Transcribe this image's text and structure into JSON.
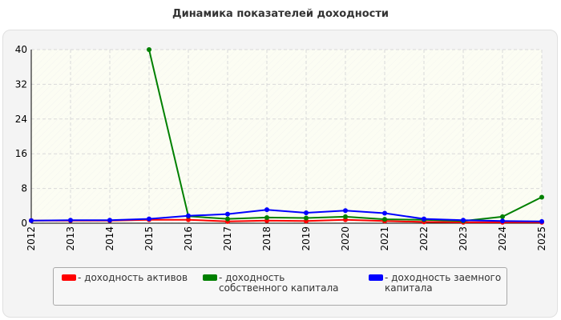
{
  "chart_data": {
    "type": "line",
    "title": "Динамика показателей доходности",
    "x": [
      "2012",
      "2013",
      "2014",
      "2015",
      "2016",
      "2017",
      "2018",
      "2019",
      "2020",
      "2021",
      "2022",
      "2023",
      "2024",
      "2025"
    ],
    "ylim": [
      0,
      40
    ],
    "yticks": [
      "0",
      "8",
      "16",
      "24",
      "32",
      "40"
    ],
    "grid": true,
    "legend_position": "bottom",
    "series": [
      {
        "name": "- доходность активов",
        "color": "#ff0000",
        "values": [
          0.6,
          0.6,
          0.6,
          0.8,
          0.8,
          0.4,
          0.6,
          0.5,
          0.8,
          0.5,
          0.3,
          0.2,
          0.2,
          0.2
        ]
      },
      {
        "name": "- доходность собственного капитала",
        "color": "#008000",
        "values": [
          null,
          null,
          null,
          40,
          1.6,
          1.0,
          1.3,
          1.2,
          1.5,
          0.9,
          0.8,
          0.5,
          1.5,
          6.0
        ]
      },
      {
        "name": "- доходность заемного капитала",
        "color": "#0000ff",
        "values": [
          0.6,
          0.7,
          0.7,
          1.0,
          1.7,
          2.1,
          3.1,
          2.4,
          2.9,
          2.3,
          1.0,
          0.7,
          0.5,
          0.4
        ]
      }
    ]
  }
}
